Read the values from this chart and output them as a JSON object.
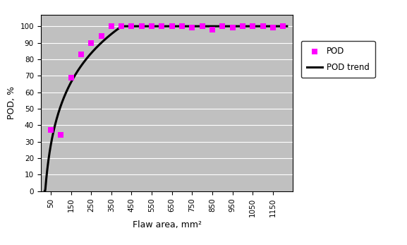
{
  "pod_x": [
    50,
    100,
    150,
    200,
    250,
    300,
    350,
    400,
    450,
    500,
    550,
    600,
    650,
    700,
    750,
    800,
    850,
    900,
    950,
    1000,
    1050,
    1100,
    1150,
    1200
  ],
  "pod_y": [
    37,
    34,
    69,
    83,
    90,
    94,
    100,
    100,
    100,
    100,
    100,
    100,
    100,
    100,
    99,
    100,
    98,
    100,
    99,
    100,
    100,
    100,
    99,
    100
  ],
  "pod_color": "#FF00FF",
  "trend_color": "#000000",
  "plot_bg_color": "#C0C0C0",
  "fig_bg_color": "#FFFFFF",
  "xlabel": "Flaw area, mm²",
  "ylabel": "POD, %",
  "ylim": [
    0,
    107
  ],
  "yticks": [
    0,
    10,
    20,
    30,
    40,
    50,
    60,
    70,
    80,
    90,
    100
  ],
  "xticks": [
    50,
    150,
    250,
    350,
    450,
    550,
    650,
    750,
    850,
    950,
    1050,
    1150
  ],
  "xlim": [
    0,
    1250
  ],
  "legend_pod": "POD",
  "legend_trend": "POD trend",
  "marker_size": 6,
  "trend_lw": 2.2,
  "log_a": 34.6,
  "log_b": -107.4,
  "trend_x_start": 20,
  "trend_x_end": 1220
}
